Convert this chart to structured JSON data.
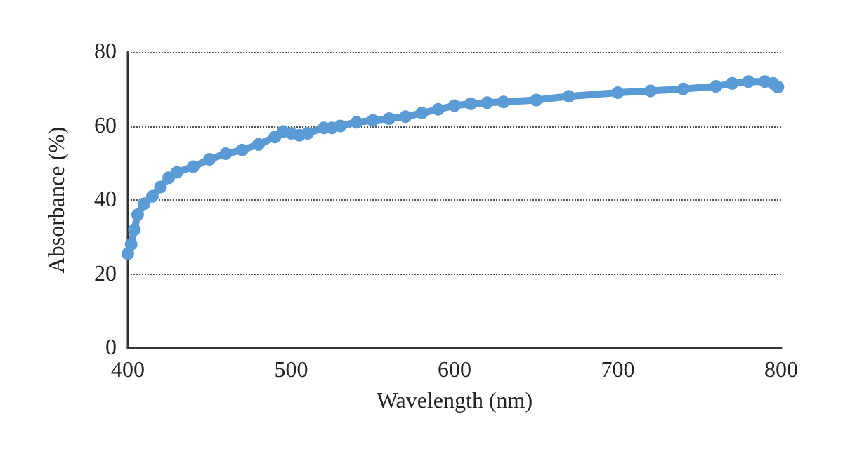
{
  "chart_data": {
    "type": "line",
    "xlabel": "Wavelength (nm)",
    "ylabel": "Absorbance (%)",
    "x": [
      400,
      402,
      404,
      406,
      410,
      415,
      420,
      425,
      430,
      440,
      450,
      460,
      470,
      480,
      490,
      495,
      500,
      505,
      510,
      520,
      525,
      530,
      540,
      550,
      560,
      570,
      580,
      590,
      600,
      610,
      620,
      630,
      650,
      670,
      700,
      720,
      740,
      760,
      770,
      780,
      790,
      795,
      798
    ],
    "series": [
      {
        "color": "#5b9bd5",
        "values": [
          25.5,
          28,
          32,
          36,
          39,
          41,
          43.5,
          46,
          47.5,
          49,
          51,
          52.5,
          53.5,
          55,
          57,
          58.5,
          58,
          57.5,
          58,
          59.5,
          59.5,
          60,
          61,
          61.5,
          62,
          62.5,
          63.5,
          64.5,
          65.5,
          66,
          66.3,
          66.5,
          67,
          68,
          69,
          69.5,
          70,
          70.7,
          71.5,
          72,
          72,
          71.5,
          70.5
        ]
      }
    ],
    "xlim": [
      400,
      800
    ],
    "xticks": [
      400,
      500,
      600,
      700,
      800
    ],
    "ylim": [
      0,
      80
    ],
    "yticks": [
      0,
      20,
      40,
      60,
      80
    ],
    "grid": "y",
    "marker": "circle",
    "line_style": "solid"
  }
}
